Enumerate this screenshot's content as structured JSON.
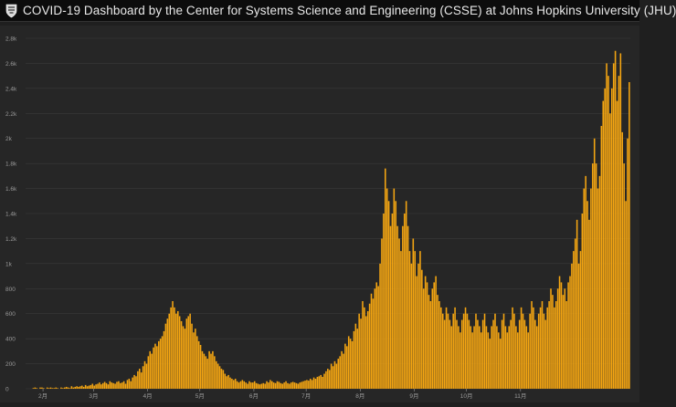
{
  "header": {
    "title": "COVID-19 Dashboard by the Center for Systems Science and Engineering (CSSE) at Johns Hopkins University (JHU)",
    "logo_icon": "jhu-shield-icon"
  },
  "colors": {
    "bar": "#f5a612",
    "background": "#262626",
    "grid": "#3a3a3a",
    "axis_text": "#9a9a9a"
  },
  "chart_data": {
    "type": "bar",
    "title": "",
    "xlabel": "",
    "ylabel": "",
    "ylim": [
      0,
      2800
    ],
    "yticks": [
      0,
      200,
      400,
      600,
      800,
      1000,
      1200,
      1400,
      1600,
      1800,
      2000,
      2200,
      2400,
      2600,
      2800
    ],
    "ytick_labels": [
      "0",
      "200",
      "400",
      "600",
      "800",
      "1k",
      "1.2k",
      "1.4k",
      "1.6k",
      "1.8k",
      "2k",
      "2.2k",
      "2.4k",
      "2.6k",
      "2.8k"
    ],
    "x_start": "2020-01-22",
    "month_labels": [
      {
        "label": "2月",
        "date": "2020-02-01"
      },
      {
        "label": "3月",
        "date": "2020-03-01"
      },
      {
        "label": "4月",
        "date": "2020-04-01"
      },
      {
        "label": "5月",
        "date": "2020-05-01"
      },
      {
        "label": "6月",
        "date": "2020-06-01"
      },
      {
        "label": "7月",
        "date": "2020-07-01"
      },
      {
        "label": "8月",
        "date": "2020-08-01"
      },
      {
        "label": "9月",
        "date": "2020-09-01"
      },
      {
        "label": "10月",
        "date": "2020-10-01"
      },
      {
        "label": "11月",
        "date": "2020-11-01"
      }
    ],
    "grid": true,
    "values": [
      0,
      0,
      0,
      0,
      5,
      10,
      5,
      0,
      10,
      10,
      5,
      0,
      10,
      5,
      10,
      5,
      5,
      10,
      5,
      0,
      10,
      5,
      10,
      15,
      10,
      5,
      20,
      10,
      15,
      20,
      15,
      20,
      25,
      15,
      30,
      20,
      25,
      30,
      40,
      25,
      35,
      40,
      50,
      35,
      45,
      55,
      45,
      35,
      60,
      50,
      45,
      40,
      55,
      60,
      45,
      50,
      60,
      40,
      70,
      80,
      60,
      90,
      110,
      100,
      140,
      160,
      130,
      180,
      220,
      200,
      260,
      300,
      280,
      330,
      360,
      340,
      380,
      400,
      420,
      460,
      520,
      560,
      600,
      650,
      700,
      650,
      600,
      620,
      580,
      540,
      500,
      480,
      560,
      580,
      600,
      520,
      450,
      480,
      420,
      380,
      350,
      300,
      280,
      260,
      240,
      300,
      280,
      300,
      260,
      220,
      200,
      180,
      160,
      150,
      120,
      100,
      110,
      90,
      80,
      70,
      80,
      60,
      50,
      60,
      70,
      60,
      50,
      40,
      60,
      50,
      50,
      60,
      45,
      40,
      35,
      40,
      45,
      40,
      60,
      50,
      70,
      60,
      50,
      45,
      60,
      55,
      45,
      40,
      50,
      60,
      45,
      40,
      50,
      55,
      50,
      45,
      40,
      50,
      55,
      60,
      65,
      70,
      65,
      80,
      70,
      90,
      80,
      95,
      100,
      110,
      95,
      120,
      140,
      160,
      150,
      200,
      180,
      220,
      200,
      240,
      260,
      300,
      280,
      360,
      340,
      420,
      400,
      380,
      460,
      520,
      480,
      600,
      560,
      700,
      650,
      580,
      620,
      680,
      760,
      720,
      800,
      850,
      820,
      1000,
      1200,
      1400,
      1760,
      1600,
      1500,
      1300,
      1400,
      1600,
      1500,
      1300,
      1200,
      1100,
      1300,
      1400,
      1500,
      1300,
      1100,
      1000,
      1200,
      1100,
      900,
      1000,
      1100,
      950,
      800,
      900,
      850,
      750,
      700,
      800,
      850,
      900,
      750,
      700,
      650,
      600,
      550,
      650,
      600,
      550,
      500,
      600,
      650,
      550,
      500,
      450,
      550,
      600,
      650,
      600,
      550,
      500,
      450,
      500,
      600,
      550,
      500,
      450,
      550,
      600,
      500,
      450,
      400,
      500,
      550,
      600,
      500,
      450,
      400,
      550,
      600,
      500,
      450,
      500,
      550,
      650,
      600,
      500,
      450,
      550,
      650,
      600,
      550,
      500,
      450,
      600,
      700,
      650,
      550,
      500,
      600,
      650,
      700,
      600,
      550,
      650,
      700,
      800,
      750,
      650,
      700,
      800,
      900,
      850,
      750,
      800,
      700,
      850,
      900,
      1000,
      1100,
      1200,
      1350,
      1000,
      1100,
      1400,
      1600,
      1700,
      1500,
      1350,
      1600,
      1800,
      2000,
      1800,
      1600,
      1700,
      2100,
      2300,
      2400,
      2600,
      2500,
      2200,
      2400,
      2600,
      2700,
      2300,
      2500,
      2680,
      2050,
      1800,
      1500,
      2000,
      2450
    ]
  }
}
